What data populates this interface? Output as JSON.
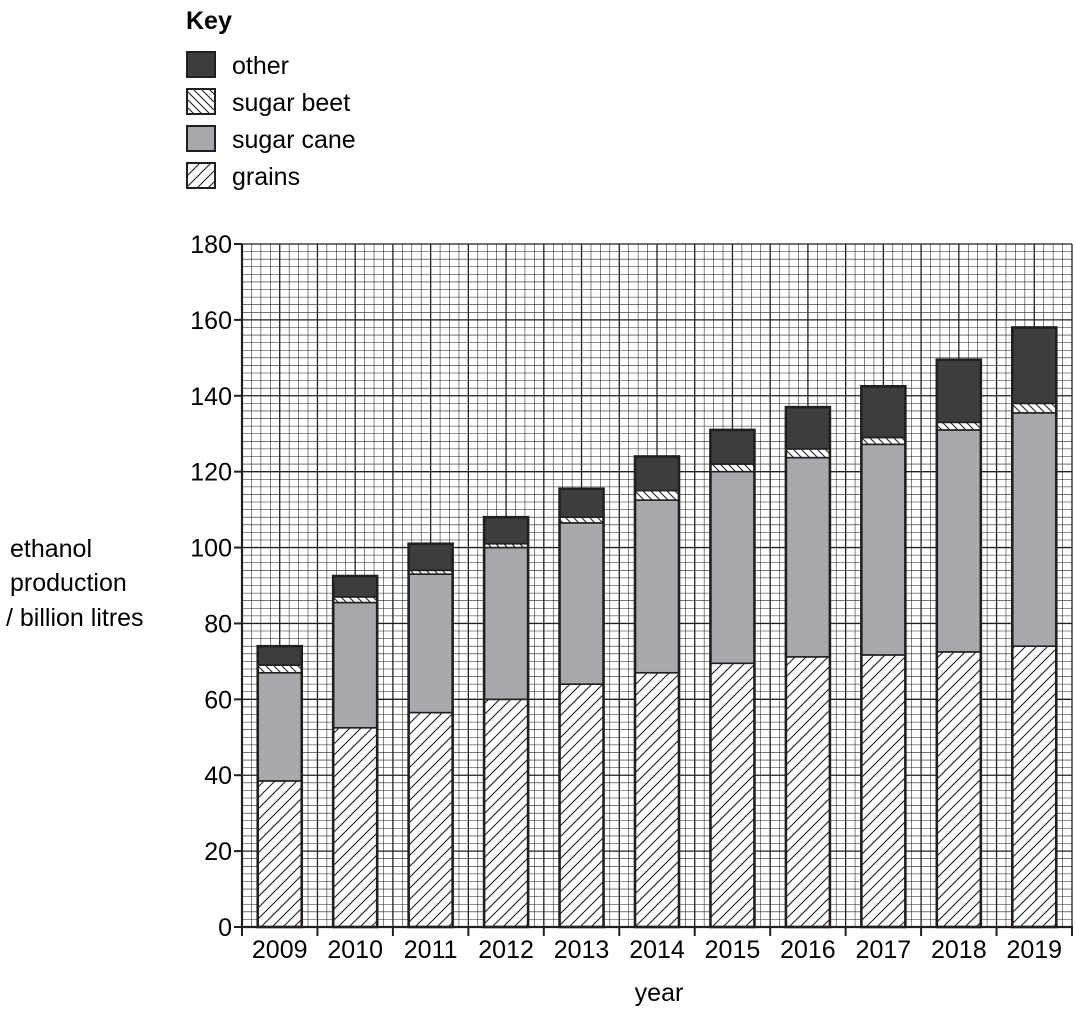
{
  "chart_data": {
    "type": "bar",
    "stacked": true,
    "key_title": "Key",
    "categories": [
      "2009",
      "2010",
      "2011",
      "2012",
      "2013",
      "2014",
      "2015",
      "2016",
      "2017",
      "2018",
      "2019"
    ],
    "series": [
      {
        "name": "grains",
        "values": [
          38.5,
          52.5,
          56.5,
          60,
          64,
          67,
          69.5,
          71.2,
          71.7,
          72.5,
          74
        ],
        "fill": "hatch-forward"
      },
      {
        "name": "sugar cane",
        "values": [
          28.5,
          33,
          36.5,
          40,
          42.5,
          45.5,
          50.5,
          52.5,
          55.5,
          58.5,
          61.5
        ],
        "fill": "#a7a9ac"
      },
      {
        "name": "sugar beet",
        "values": [
          2,
          1.5,
          1,
          1,
          1.5,
          2.5,
          2,
          2.3,
          1.8,
          2,
          2.5
        ],
        "fill": "hatch-backward"
      },
      {
        "name": "other",
        "values": [
          5,
          5.5,
          7,
          7,
          7.5,
          9,
          9,
          11,
          13.5,
          16.5,
          20
        ],
        "fill": "#3d3d3d"
      }
    ],
    "legend_order": [
      "other",
      "sugar beet",
      "sugar cane",
      "grains"
    ],
    "legend_position": "top-left",
    "xlabel": "year",
    "ylabel_lines": [
      "ethanol",
      "production",
      "/ billion litres"
    ],
    "ylim": [
      0,
      180
    ],
    "y_ticks": [
      0,
      20,
      40,
      60,
      80,
      100,
      120,
      140,
      160,
      180
    ],
    "grid": true,
    "colors": {
      "ink": "#231f20",
      "grid": "#231f20",
      "cane": "#a7a9ac",
      "other": "#3d3d3d"
    }
  }
}
